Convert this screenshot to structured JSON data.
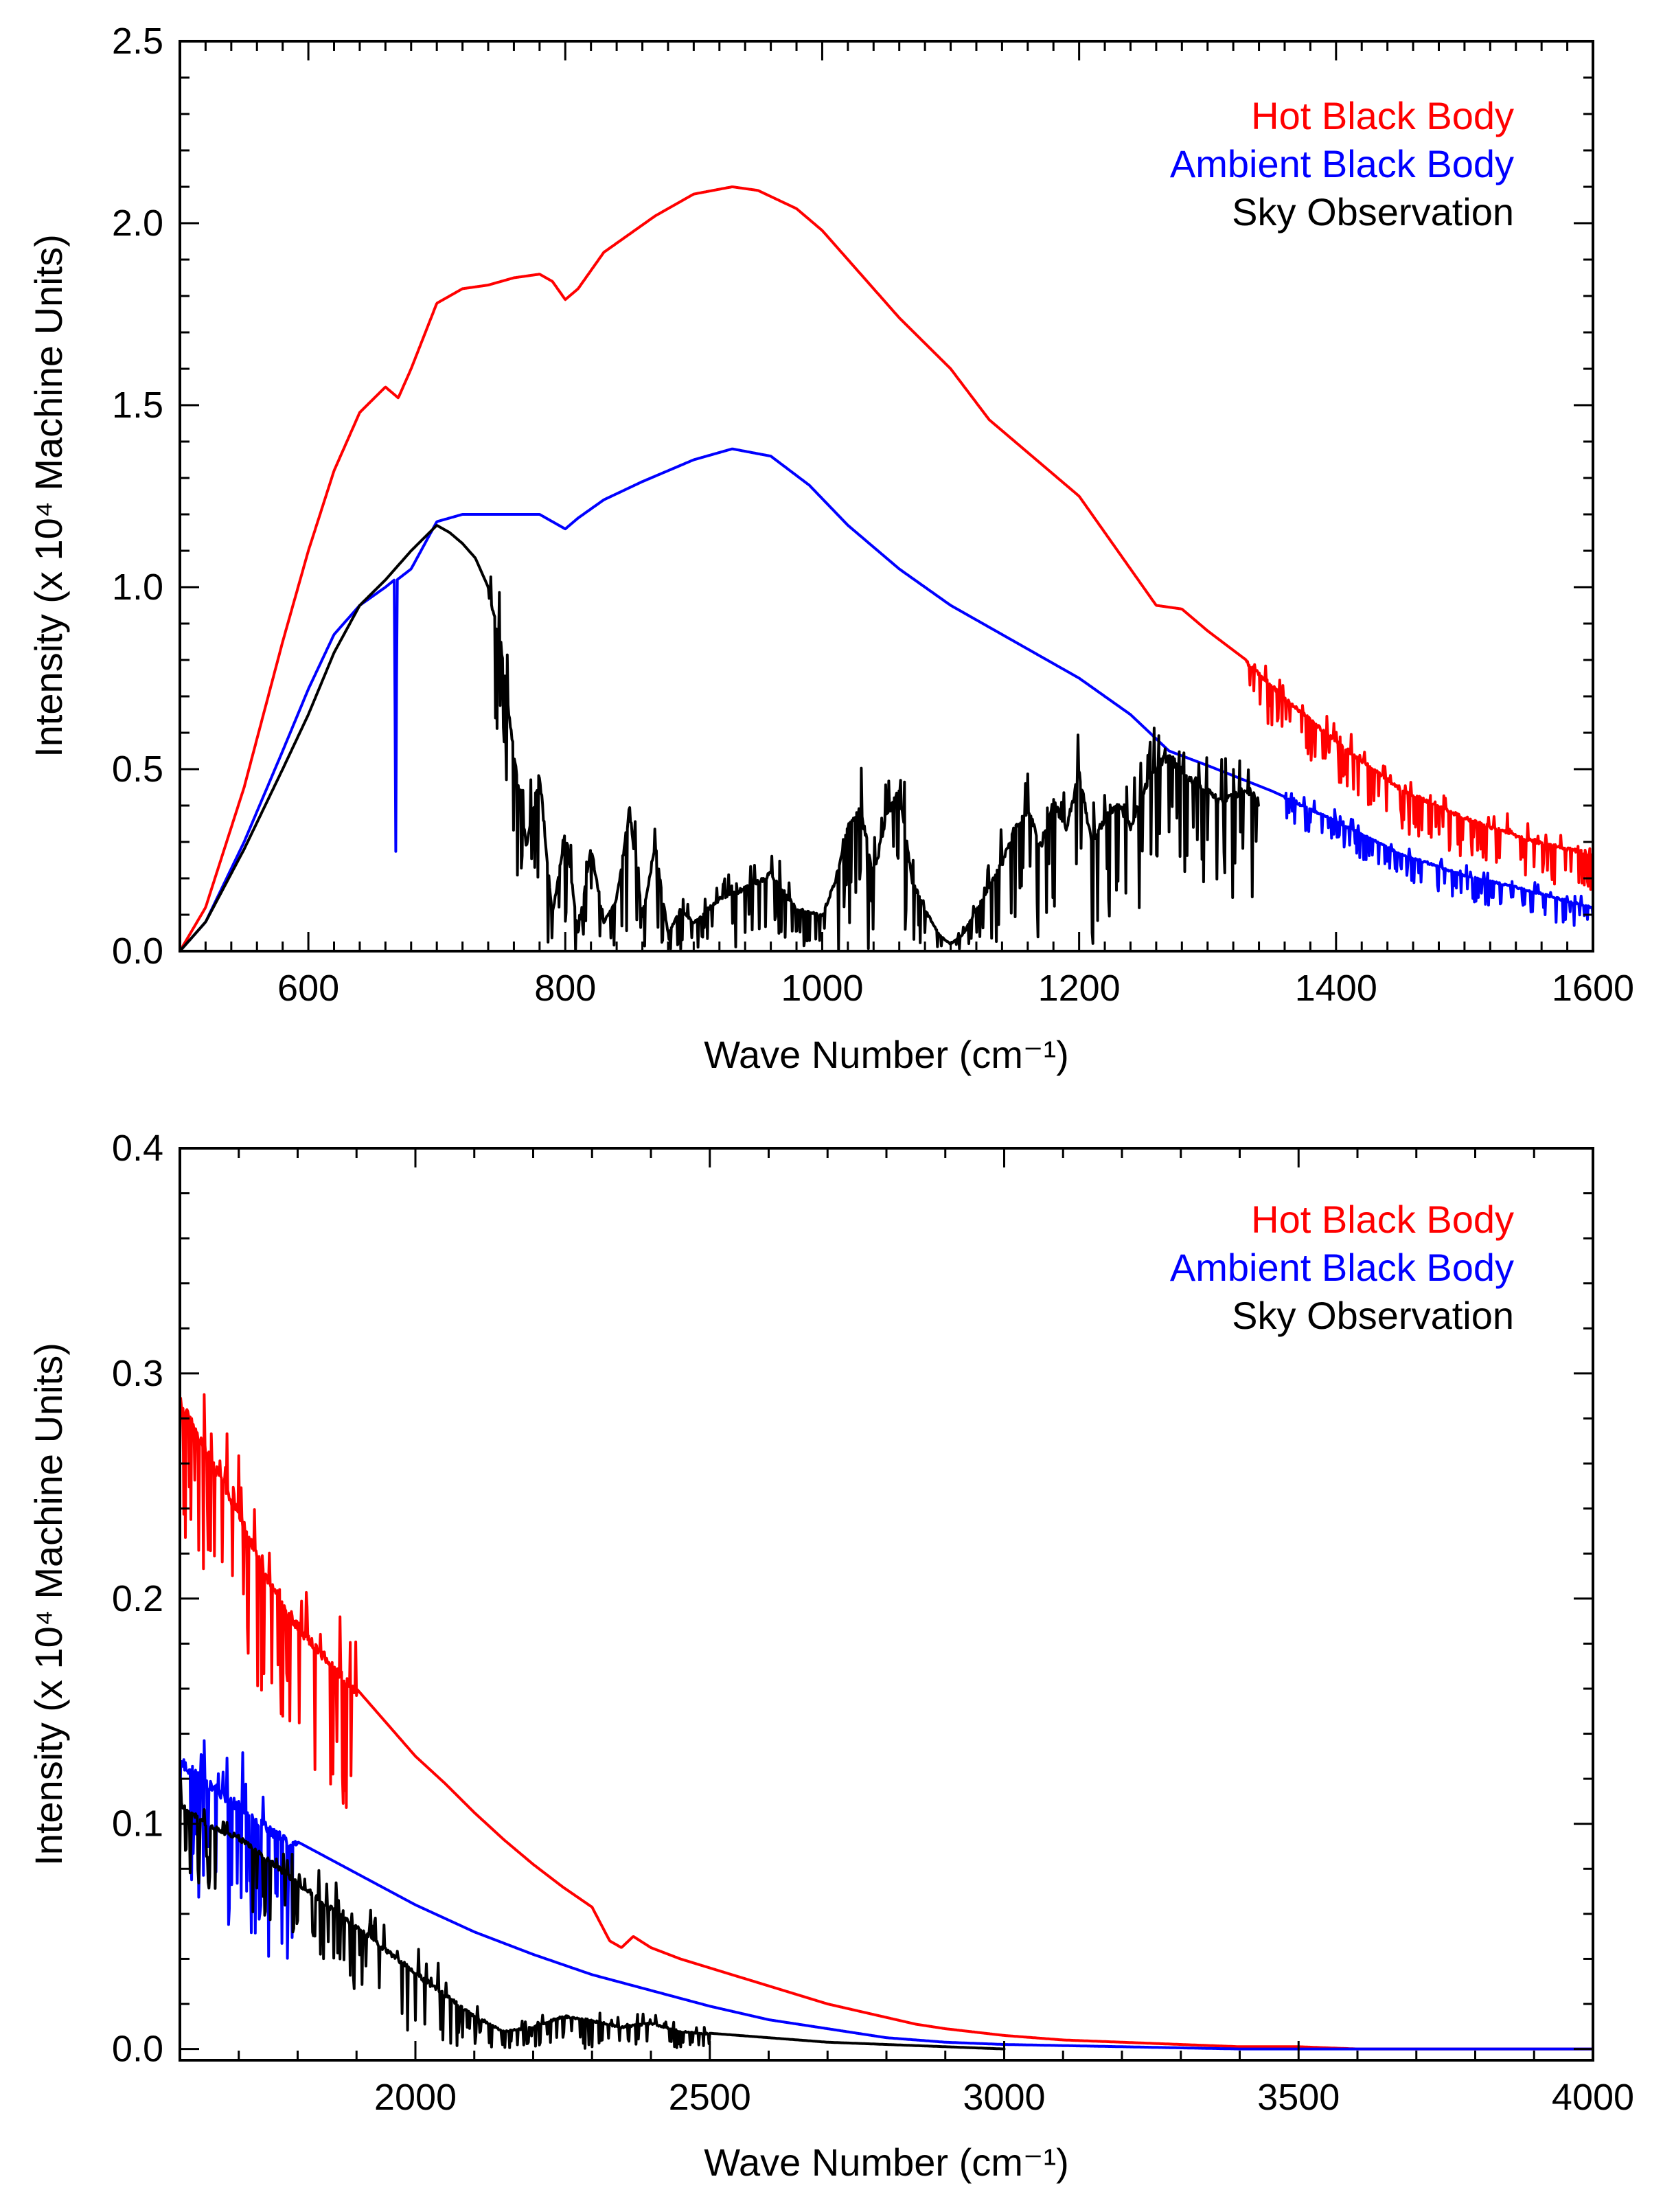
{
  "chart_data": [
    {
      "type": "line",
      "xlabel": "Wave Number (cm⁻¹)",
      "ylabel": "Intensity (x 10⁴ Machine Units)",
      "xlim": [
        500,
        1600
      ],
      "ylim": [
        0,
        2.5
      ],
      "x_ticks": [
        600,
        800,
        1000,
        1200,
        1400,
        1600
      ],
      "y_ticks": [
        0.0,
        0.5,
        1.0,
        1.5,
        2.0,
        2.5
      ],
      "x_tick_labels": [
        "600",
        "800",
        "1000",
        "1200",
        "1400",
        "1600"
      ],
      "y_tick_labels": [
        "0.0",
        "0.5",
        "1.0",
        "1.5",
        "2.0",
        "2.5"
      ],
      "x_minor_step": 20,
      "y_minor_step": 0.1,
      "legend_position": "top-right",
      "series": [
        {
          "name": "Hot Black Body",
          "color": "#ff0000",
          "x": [
            500,
            520,
            550,
            580,
            600,
            620,
            640,
            660,
            670,
            680,
            700,
            720,
            740,
            760,
            780,
            790,
            800,
            810,
            830,
            850,
            870,
            900,
            930,
            950,
            980,
            1000,
            1030,
            1060,
            1100,
            1130,
            1160,
            1200,
            1230,
            1260,
            1280,
            1300,
            1330,
            1360,
            1400,
            1450,
            1500,
            1550,
            1600
          ],
          "values": [
            0.0,
            0.12,
            0.45,
            0.85,
            1.1,
            1.32,
            1.48,
            1.55,
            1.52,
            1.6,
            1.78,
            1.82,
            1.83,
            1.85,
            1.86,
            1.84,
            1.79,
            1.82,
            1.92,
            1.97,
            2.02,
            2.08,
            2.1,
            2.09,
            2.04,
            1.98,
            1.86,
            1.74,
            1.6,
            1.46,
            1.37,
            1.25,
            1.1,
            0.95,
            0.94,
            0.88,
            0.8,
            0.7,
            0.58,
            0.45,
            0.37,
            0.31,
            0.27
          ],
          "noise_from": 1330,
          "noise_amplitude": 0.12
        },
        {
          "name": "Ambient Black Body",
          "color": "#0000ff",
          "x": [
            500,
            520,
            550,
            580,
            600,
            620,
            640,
            660,
            667,
            668,
            669,
            680,
            700,
            720,
            750,
            780,
            790,
            800,
            810,
            830,
            860,
            900,
            930,
            960,
            990,
            1020,
            1060,
            1100,
            1150,
            1200,
            1240,
            1270,
            1300,
            1350,
            1400,
            1450,
            1500,
            1550,
            1600
          ],
          "values": [
            0.0,
            0.08,
            0.3,
            0.55,
            0.72,
            0.87,
            0.95,
            1.0,
            1.02,
            0.23,
            1.02,
            1.05,
            1.18,
            1.2,
            1.2,
            1.2,
            1.18,
            1.16,
            1.19,
            1.24,
            1.29,
            1.35,
            1.38,
            1.36,
            1.28,
            1.17,
            1.05,
            0.95,
            0.85,
            0.75,
            0.65,
            0.55,
            0.51,
            0.44,
            0.36,
            0.27,
            0.21,
            0.17,
            0.12
          ],
          "noise_from": 1360,
          "noise_amplitude": 0.07
        },
        {
          "name": "Sky Observation",
          "color": "#000000",
          "x": [
            500,
            520,
            550,
            580,
            600,
            620,
            640,
            660,
            680,
            700,
            710,
            720,
            730,
            740,
            750,
            760,
            770,
            780,
            790,
            800,
            810,
            820,
            830,
            840,
            850,
            860,
            870,
            880,
            890,
            900,
            920,
            940,
            960,
            980,
            1000,
            1010,
            1020,
            1030,
            1040,
            1050,
            1060,
            1070,
            1080,
            1090,
            1100,
            1110,
            1120,
            1130,
            1140,
            1150,
            1160,
            1170,
            1180,
            1190,
            1200,
            1210,
            1220,
            1230,
            1240,
            1250,
            1260,
            1270,
            1280,
            1290,
            1300,
            1310,
            1320,
            1330,
            1340
          ],
          "values": [
            0.0,
            0.08,
            0.28,
            0.5,
            0.65,
            0.82,
            0.95,
            1.02,
            1.1,
            1.17,
            1.15,
            1.12,
            1.08,
            1.0,
            0.85,
            0.55,
            0.3,
            0.5,
            0.1,
            0.35,
            0.05,
            0.3,
            0.08,
            0.15,
            0.4,
            0.1,
            0.3,
            0.05,
            0.12,
            0.08,
            0.15,
            0.18,
            0.22,
            0.12,
            0.1,
            0.2,
            0.35,
            0.4,
            0.22,
            0.38,
            0.45,
            0.2,
            0.12,
            0.05,
            0.02,
            0.05,
            0.12,
            0.18,
            0.25,
            0.35,
            0.4,
            0.3,
            0.42,
            0.35,
            0.5,
            0.3,
            0.38,
            0.42,
            0.35,
            0.45,
            0.52,
            0.55,
            0.5,
            0.48,
            0.45,
            0.42,
            0.44,
            0.46,
            0.42
          ],
          "noise_from": 740,
          "noise_amplitude": 0.3
        }
      ]
    },
    {
      "type": "line",
      "xlabel": "Wave Number (cm⁻¹)",
      "ylabel": "Intensity (x 10⁴ Machine Units)",
      "xlim": [
        1600,
        4000
      ],
      "ylim": [
        -0.005,
        0.4
      ],
      "x_ticks": [
        2000,
        2500,
        3000,
        3500,
        4000
      ],
      "y_ticks": [
        0.0,
        0.1,
        0.2,
        0.3,
        0.4
      ],
      "x_tick_labels": [
        "2000",
        "2500",
        "3000",
        "3500",
        "4000"
      ],
      "y_tick_labels": [
        "0.0",
        "0.1",
        "0.2",
        "0.3",
        "0.4"
      ],
      "x_minor_step": 100,
      "y_minor_step": 0.02,
      "legend_position": "top-right",
      "series": [
        {
          "name": "Hot Black Body",
          "color": "#ff0000",
          "x": [
            1600,
            1650,
            1700,
            1750,
            1800,
            1850,
            1900,
            1950,
            2000,
            2050,
            2100,
            2150,
            2200,
            2250,
            2300,
            2330,
            2350,
            2370,
            2400,
            2450,
            2500,
            2550,
            2600,
            2650,
            2700,
            2750,
            2800,
            2850,
            2900,
            3000,
            3100,
            3200,
            3300,
            3400,
            3500,
            3600,
            3700,
            3800,
            3900,
            4000
          ],
          "values": [
            0.29,
            0.265,
            0.24,
            0.21,
            0.19,
            0.175,
            0.16,
            0.145,
            0.13,
            0.118,
            0.105,
            0.093,
            0.082,
            0.072,
            0.063,
            0.048,
            0.045,
            0.05,
            0.045,
            0.04,
            0.036,
            0.032,
            0.028,
            0.024,
            0.02,
            0.017,
            0.014,
            0.011,
            0.009,
            0.006,
            0.004,
            0.003,
            0.002,
            0.001,
            0.001,
            0.0,
            0.0,
            0.0,
            0.0,
            0.0
          ],
          "noise_from": 1600,
          "noise_until": 1900,
          "noise_amplitude": 0.06
        },
        {
          "name": "Ambient Black Body",
          "color": "#0000ff",
          "x": [
            1600,
            1650,
            1700,
            1750,
            1800,
            1850,
            1900,
            1950,
            2000,
            2100,
            2200,
            2300,
            2400,
            2500,
            2600,
            2700,
            2800,
            2900,
            3000,
            3200,
            3400,
            3600,
            3800,
            4000
          ],
          "values": [
            0.13,
            0.12,
            0.11,
            0.1,
            0.092,
            0.085,
            0.078,
            0.071,
            0.064,
            0.052,
            0.042,
            0.033,
            0.026,
            0.019,
            0.013,
            0.009,
            0.005,
            0.003,
            0.002,
            0.001,
            0.0,
            0.0,
            0.0,
            0.0
          ],
          "noise_from": 1600,
          "noise_until": 1800,
          "noise_amplitude": 0.06
        },
        {
          "name": "Sky Observation",
          "color": "#000000",
          "x": [
            1600,
            1650,
            1700,
            1750,
            1800,
            1850,
            1900,
            1950,
            2000,
            2050,
            2100,
            2150,
            2200,
            2250,
            2300,
            2350,
            2400,
            2450,
            2500,
            2550,
            2600,
            2700,
            2800,
            2900,
            3000
          ],
          "values": [
            0.11,
            0.1,
            0.095,
            0.085,
            0.075,
            0.065,
            0.055,
            0.045,
            0.035,
            0.025,
            0.015,
            0.008,
            0.01,
            0.015,
            0.013,
            0.01,
            0.012,
            0.008,
            0.007,
            0.006,
            0.005,
            0.003,
            0.002,
            0.001,
            0.0
          ],
          "noise_from": 1600,
          "noise_until": 2500,
          "noise_amplitude": 0.03
        }
      ]
    }
  ]
}
